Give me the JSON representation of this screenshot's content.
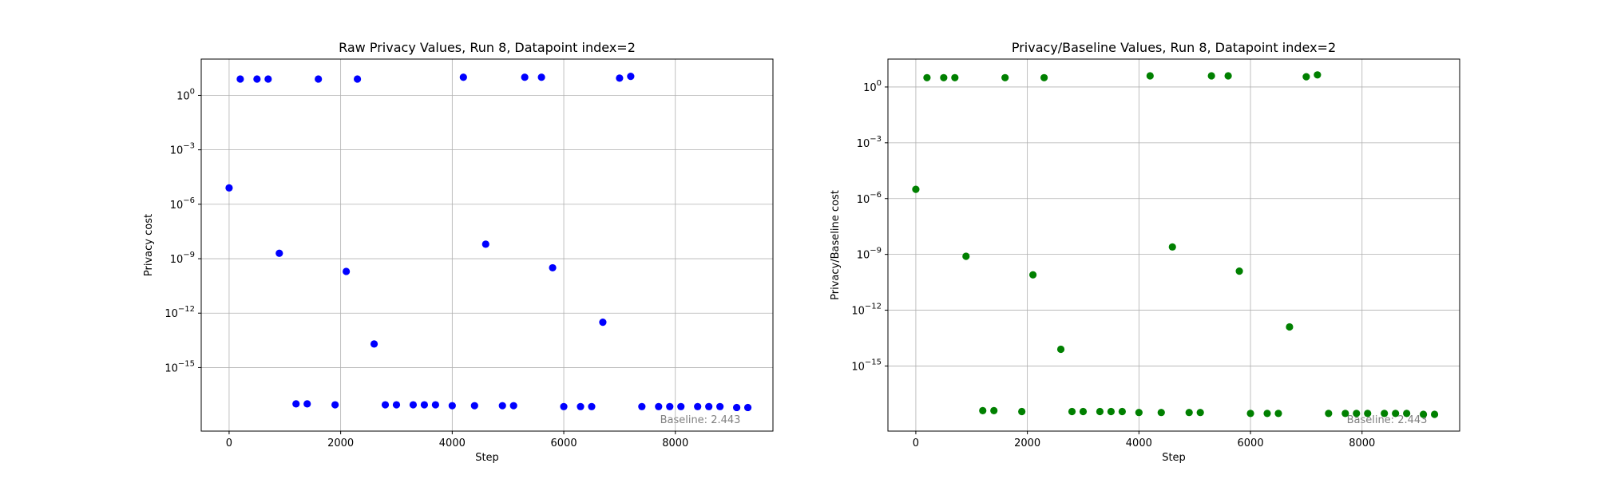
{
  "chart_data": [
    {
      "type": "scatter",
      "title": "Raw Privacy Values, Run 8, Datapoint index=2",
      "xlabel": "Step",
      "ylabel": "Privacy cost",
      "xlim": [
        -500,
        9750
      ],
      "ylim_log10": [
        -18.5,
        2
      ],
      "yscale": "log",
      "grid": true,
      "color": "#0000ff",
      "annotation": "Baseline: 2.443",
      "x_ticks": [
        0,
        2000,
        4000,
        6000,
        8000
      ],
      "x_tick_labels": [
        "0",
        "2000",
        "4000",
        "6000",
        "8000"
      ],
      "y_ticks_log10": [
        0,
        -3,
        -6,
        -9,
        -12,
        -15
      ],
      "y_tick_labels": [
        [
          "10",
          "0"
        ],
        [
          "10",
          "−3"
        ],
        [
          "10",
          "−6"
        ],
        [
          "10",
          "−9"
        ],
        [
          "10",
          "−12"
        ],
        [
          "10",
          "−15"
        ]
      ],
      "points_log10": [
        [
          0,
          -5.1
        ],
        [
          200,
          0.9
        ],
        [
          500,
          0.9
        ],
        [
          700,
          0.9
        ],
        [
          900,
          -8.7
        ],
        [
          1200,
          -17.0
        ],
        [
          1400,
          -17.0
        ],
        [
          1600,
          0.9
        ],
        [
          1900,
          -17.05
        ],
        [
          2100,
          -9.7
        ],
        [
          2300,
          0.9
        ],
        [
          2600,
          -13.7
        ],
        [
          2800,
          -17.05
        ],
        [
          3000,
          -17.05
        ],
        [
          3300,
          -17.05
        ],
        [
          3500,
          -17.05
        ],
        [
          3700,
          -17.05
        ],
        [
          4000,
          -17.1
        ],
        [
          4200,
          1.0
        ],
        [
          4400,
          -17.1
        ],
        [
          4600,
          -8.2
        ],
        [
          4900,
          -17.1
        ],
        [
          5100,
          -17.1
        ],
        [
          5300,
          1.0
        ],
        [
          5600,
          1.0
        ],
        [
          5800,
          -9.5
        ],
        [
          6000,
          -17.15
        ],
        [
          6300,
          -17.15
        ],
        [
          6500,
          -17.15
        ],
        [
          6700,
          -12.5
        ],
        [
          7000,
          0.95
        ],
        [
          7200,
          1.05
        ],
        [
          7400,
          -17.15
        ],
        [
          7700,
          -17.15
        ],
        [
          7900,
          -17.15
        ],
        [
          8100,
          -17.15
        ],
        [
          8400,
          -17.15
        ],
        [
          8600,
          -17.15
        ],
        [
          8800,
          -17.15
        ],
        [
          9100,
          -17.2
        ],
        [
          9300,
          -17.2
        ]
      ]
    },
    {
      "type": "scatter",
      "title": "Privacy/Baseline Values, Run 8, Datapoint index=2",
      "xlabel": "Step",
      "ylabel": "Privacy/Baseline cost",
      "xlim": [
        -500,
        9750
      ],
      "ylim_log10": [
        -18.5,
        1.5
      ],
      "yscale": "log",
      "grid": true,
      "color": "#008000",
      "annotation": "Baseline: 2.443",
      "x_ticks": [
        0,
        2000,
        4000,
        6000,
        8000
      ],
      "x_tick_labels": [
        "0",
        "2000",
        "4000",
        "6000",
        "8000"
      ],
      "y_ticks_log10": [
        0,
        -3,
        -6,
        -9,
        -12,
        -15
      ],
      "y_tick_labels": [
        [
          "10",
          "0"
        ],
        [
          "10",
          "−3"
        ],
        [
          "10",
          "−6"
        ],
        [
          "10",
          "−9"
        ],
        [
          "10",
          "−12"
        ],
        [
          "10",
          "−15"
        ]
      ],
      "points_log10": [
        [
          0,
          -5.5
        ],
        [
          200,
          0.5
        ],
        [
          500,
          0.5
        ],
        [
          700,
          0.5
        ],
        [
          900,
          -9.1
        ],
        [
          1200,
          -17.4
        ],
        [
          1400,
          -17.4
        ],
        [
          1600,
          0.5
        ],
        [
          1900,
          -17.45
        ],
        [
          2100,
          -10.1
        ],
        [
          2300,
          0.5
        ],
        [
          2600,
          -14.1
        ],
        [
          2800,
          -17.45
        ],
        [
          3000,
          -17.45
        ],
        [
          3300,
          -17.45
        ],
        [
          3500,
          -17.45
        ],
        [
          3700,
          -17.45
        ],
        [
          4000,
          -17.5
        ],
        [
          4200,
          0.6
        ],
        [
          4400,
          -17.5
        ],
        [
          4600,
          -8.6
        ],
        [
          4900,
          -17.5
        ],
        [
          5100,
          -17.5
        ],
        [
          5300,
          0.6
        ],
        [
          5600,
          0.6
        ],
        [
          5800,
          -9.9
        ],
        [
          6000,
          -17.55
        ],
        [
          6300,
          -17.55
        ],
        [
          6500,
          -17.55
        ],
        [
          6700,
          -12.9
        ],
        [
          7000,
          0.55
        ],
        [
          7200,
          0.65
        ],
        [
          7400,
          -17.55
        ],
        [
          7700,
          -17.55
        ],
        [
          7900,
          -17.55
        ],
        [
          8100,
          -17.55
        ],
        [
          8400,
          -17.55
        ],
        [
          8600,
          -17.55
        ],
        [
          8800,
          -17.55
        ],
        [
          9100,
          -17.6
        ],
        [
          9300,
          -17.6
        ]
      ]
    }
  ]
}
